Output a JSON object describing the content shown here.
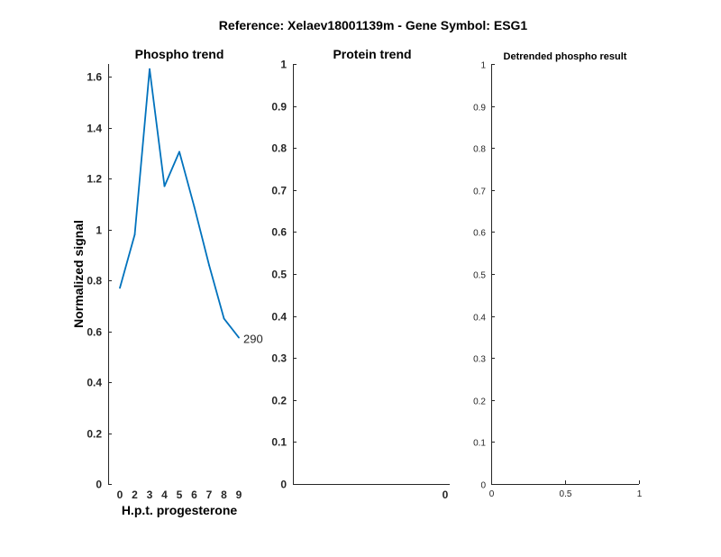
{
  "figure": {
    "title": "Reference:  Xelaev18001139m - Gene Symbol:  ESG1"
  },
  "chart_data": [
    {
      "type": "line",
      "title": "Phospho trend",
      "xlabel": "H.p.t. progesterone",
      "ylabel": "Normalized signal",
      "categories": [
        "0",
        "2",
        "3",
        "4",
        "5",
        "6",
        "7",
        "8",
        "9"
      ],
      "ylim": [
        0,
        1.65
      ],
      "yticks": [
        0,
        0.2,
        0.4,
        0.6,
        0.8,
        1,
        1.2,
        1.4,
        1.6
      ],
      "ytick_labels": [
        "0",
        "0.2",
        "0.4",
        "0.6",
        "0.8",
        "1",
        "1.2",
        "1.4",
        "1.6"
      ],
      "series": [
        {
          "values": [
            0.77,
            0.98,
            1.63,
            1.17,
            1.305,
            1.09,
            0.86,
            0.65,
            0.575
          ],
          "color": "#0072bd"
        }
      ],
      "annotations": [
        {
          "text": "290",
          "at_category": "9"
        }
      ],
      "grid": false
    },
    {
      "type": "line",
      "title": "Protein trend",
      "ylim": [
        0,
        1
      ],
      "yticks": [
        0,
        0.1,
        0.2,
        0.3,
        0.4,
        0.5,
        0.6,
        0.7,
        0.8,
        0.9,
        1
      ],
      "ytick_labels": [
        "0",
        "0.1",
        "0.2",
        "0.3",
        "0.4",
        "0.5",
        "0.6",
        "0.7",
        "0.8",
        "0.9",
        "1"
      ],
      "xtick_labels": [
        "0"
      ],
      "series": [],
      "grid": false
    },
    {
      "type": "line",
      "title": "Detrended phospho result",
      "xlim": [
        0,
        1
      ],
      "ylim": [
        0,
        1
      ],
      "xticks": [
        0,
        0.5,
        1
      ],
      "xtick_labels": [
        "0",
        "0.5",
        "1"
      ],
      "yticks": [
        0,
        0.1,
        0.2,
        0.3,
        0.4,
        0.5,
        0.6,
        0.7,
        0.8,
        0.9,
        1
      ],
      "ytick_labels": [
        "0",
        "0.1",
        "0.2",
        "0.3",
        "0.4",
        "0.5",
        "0.6",
        "0.7",
        "0.8",
        "0.9",
        "1"
      ],
      "series": [],
      "grid": false
    }
  ]
}
